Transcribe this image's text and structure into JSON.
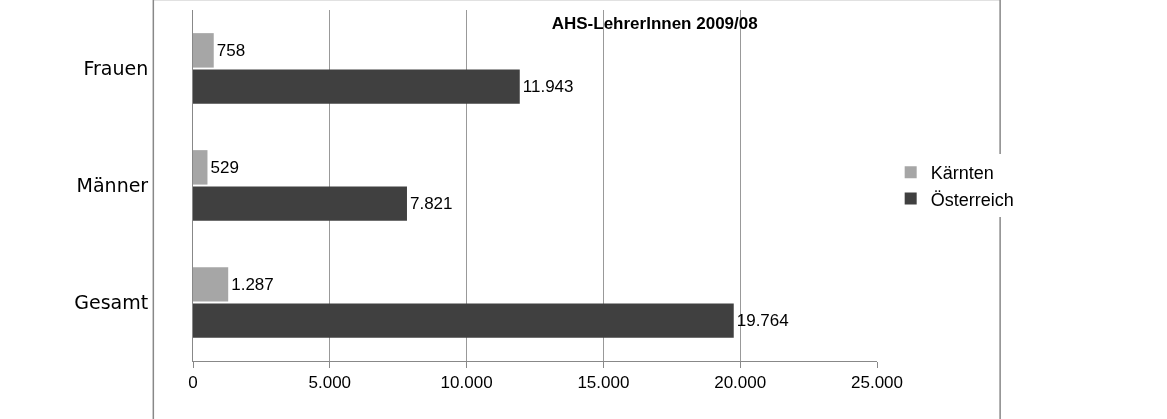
{
  "chart_data": {
    "type": "bar",
    "orientation": "horizontal",
    "title": "AHS-LehrerInnen 2009/08",
    "categories": [
      "Frauen",
      "Männer",
      "Gesamt"
    ],
    "series": [
      {
        "name": "Kärnten",
        "color": "#a6a6a6",
        "values": [
          758,
          529,
          1287
        ],
        "value_labels": [
          "758",
          "529",
          "1.287"
        ]
      },
      {
        "name": "Österreich",
        "color": "#404040",
        "values": [
          11943,
          7821,
          19764
        ],
        "value_labels": [
          "11.943",
          "7.821",
          "19.764"
        ]
      }
    ],
    "xlim": [
      0,
      25000
    ],
    "xticks": [
      0,
      {
        "value": 5000,
        "label": "5.000"
      },
      {
        "value": 10000,
        "label": "10.000"
      },
      {
        "value": 15000,
        "label": "15.000"
      },
      {
        "value": 20000,
        "label": "20.000"
      },
      {
        "value": 25000,
        "label": "25.000"
      }
    ],
    "grid": "x",
    "legend": "right"
  }
}
